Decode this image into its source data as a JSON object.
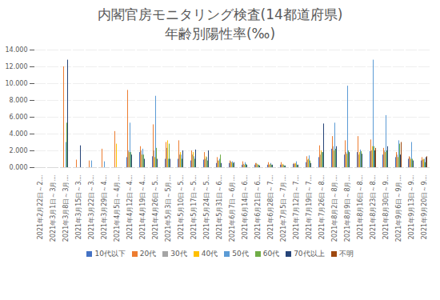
{
  "chart_data": {
    "type": "bar",
    "title": "内閣官房モニタリング検査(14都道府県)",
    "subtitle": "年齢別陽性率(‰)",
    "categories": [
      "2021年2月22日～2…",
      "2021年3月1日～3月…",
      "2021年3月8日～3月…",
      "2021年3月15日～3…",
      "2021年3月22日～3…",
      "2021年3月29日～4…",
      "2021年4月5日～4月…",
      "2021年4月12日～4…",
      "2021年4月19日～4…",
      "2021年4月26日～5…",
      "2021年5月3日～5月…",
      "2021年5月10日～5…",
      "2021年5月17日～5…",
      "2021年5月24日～5…",
      "2021年5月31日～6…",
      "2021年6月7日～6月…",
      "2021年6月14日～6…",
      "2021年6月21日～6…",
      "2021年6月28日～7…",
      "2021年7月5日～7月…",
      "2021年7月12日～7…",
      "2021年7月19日～7…",
      "2021年7月26日～8…",
      "2021年8月2日～8月…",
      "2021年8月9日～8月…",
      "2021年8月16日～8…",
      "2021年8月23日～8…",
      "2021年8月30日～9…",
      "2021年9月6日～9月…",
      "2021年9月13日～9…",
      "2021年9月20日～9…"
    ],
    "series": [
      {
        "name": "10代以下",
        "color": "#4472c4",
        "values": [
          0,
          0,
          0,
          0,
          0,
          0,
          0,
          1.2,
          1.8,
          1.3,
          1.0,
          1.0,
          0.8,
          0.9,
          0.5,
          0.5,
          0.3,
          0.3,
          0.3,
          0.3,
          0.4,
          0.6,
          1.2,
          2.2,
          1.5,
          1.8,
          1.9,
          1.5,
          1.2,
          1.0,
          0.8
        ]
      },
      {
        "name": "20代",
        "color": "#ed7d31",
        "values": [
          0,
          0,
          12.0,
          0.9,
          0.8,
          2.2,
          4.3,
          9.2,
          2.5,
          5.1,
          3.0,
          3.2,
          2.0,
          1.8,
          1.2,
          0.8,
          0.7,
          0.5,
          0.6,
          0.6,
          0.5,
          1.3,
          2.6,
          3.7,
          3.2,
          3.7,
          3.3,
          2.3,
          1.8,
          1.3,
          1.2
        ]
      },
      {
        "name": "30代",
        "color": "#a5a5a5",
        "values": [
          0,
          0,
          0,
          0,
          0,
          0,
          0,
          2.0,
          2.0,
          2.0,
          2.3,
          1.5,
          1.5,
          1.0,
          0.8,
          0.7,
          0.4,
          0.5,
          0.3,
          0.3,
          0.4,
          0.9,
          1.5,
          2.5,
          1.8,
          1.5,
          2.0,
          2.0,
          1.5,
          1.2,
          0.9
        ]
      },
      {
        "name": "40代",
        "color": "#ffc000",
        "values": [
          0,
          0,
          0,
          0,
          0,
          0,
          2.8,
          1.8,
          1.5,
          1.2,
          3.2,
          1.8,
          1.8,
          1.3,
          0.8,
          0.6,
          0.3,
          0.4,
          0.4,
          0.4,
          0.5,
          1.0,
          2.0,
          2.0,
          1.6,
          1.8,
          2.5,
          1.8,
          1.2,
          1.0,
          1.0
        ]
      },
      {
        "name": "50代",
        "color": "#5b9bd5",
        "values": [
          0,
          0,
          3.0,
          0,
          0.8,
          0.7,
          0,
          5.3,
          2.2,
          8.5,
          1.0,
          1.5,
          1.3,
          1.2,
          1.0,
          0.7,
          0.6,
          0.3,
          0.5,
          0.3,
          0.7,
          1.4,
          1.8,
          5.3,
          9.7,
          2.1,
          12.8,
          6.2,
          3.2,
          3.0,
          1.0
        ]
      },
      {
        "name": "60代",
        "color": "#70ad47",
        "values": [
          0,
          0,
          5.3,
          0,
          0,
          0,
          0,
          1.8,
          1.5,
          2.3,
          2.8,
          1.0,
          1.0,
          0.8,
          1.5,
          0.5,
          0.4,
          0.3,
          0.3,
          0.2,
          0.3,
          0.8,
          1.8,
          2.2,
          2.0,
          1.9,
          2.5,
          2.0,
          2.8,
          1.0,
          0.6
        ]
      },
      {
        "name": "70代以上",
        "color": "#264478",
        "values": [
          0,
          0,
          12.8,
          2.6,
          0,
          0,
          0,
          1.5,
          1.0,
          1.0,
          1.0,
          2.0,
          2.1,
          2.0,
          0.5,
          0.6,
          0.3,
          0.2,
          0.3,
          0.2,
          0.3,
          0.5,
          5.2,
          2.5,
          1.8,
          1.6,
          2.0,
          2.5,
          1.5,
          0.8,
          1.2
        ]
      },
      {
        "name": "不明",
        "color": "#9e480e",
        "values": [
          0,
          0,
          0,
          0,
          0,
          0,
          0,
          0,
          0,
          0,
          0,
          0,
          0,
          0,
          0,
          0,
          0,
          0,
          0,
          0,
          0,
          0,
          0,
          0,
          0,
          0,
          2.3,
          0,
          3.0,
          0,
          1.3
        ]
      }
    ],
    "ylim": [
      0,
      14
    ],
    "yticks": [
      {
        "value": 0,
        "label": "0.000"
      },
      {
        "value": 2,
        "label": "2.000"
      },
      {
        "value": 4,
        "label": "4.000"
      },
      {
        "value": 6,
        "label": "6.000"
      },
      {
        "value": 8,
        "label": "8.000"
      },
      {
        "value": 10,
        "label": "10.000"
      },
      {
        "value": 12,
        "label": "12.000"
      },
      {
        "value": 14,
        "label": "14.000"
      }
    ],
    "grid": true,
    "legend": "bottom"
  }
}
